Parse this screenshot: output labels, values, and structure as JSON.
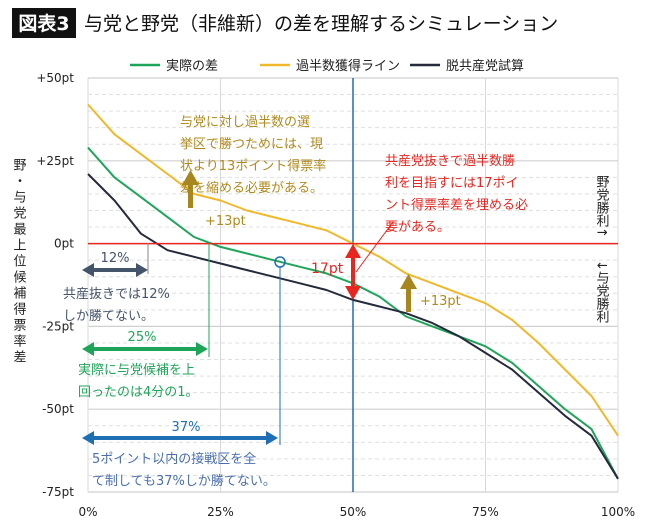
{
  "title_badge": "図表3",
  "title": "与党と野党（非維新）の差を理解するシミュレーション",
  "chart_data": {
    "type": "line",
    "xlabel": "",
    "ylabel": "野・与党最上位候補得票率差",
    "xlim": [
      0,
      100
    ],
    "ylim": [
      -75,
      50
    ],
    "x_ticks": [
      "0%",
      "25%",
      "50%",
      "75%",
      "100%"
    ],
    "y_ticks": [
      "+50pt",
      "+25pt",
      "0pt",
      "-25pt",
      "-50pt",
      "-75pt"
    ],
    "grid": true,
    "legend_position": "top",
    "x": [
      0,
      5,
      10,
      15,
      20,
      25,
      30,
      35,
      40,
      45,
      50,
      55,
      60,
      65,
      70,
      75,
      80,
      85,
      90,
      95,
      100
    ],
    "series": [
      {
        "name": "実際の差",
        "color": "#1fa55a",
        "values": [
          29,
          20,
          14,
          8,
          2,
          -1,
          -3,
          -5,
          -7,
          -9,
          -12,
          -16,
          -22,
          -25,
          -28,
          -31,
          -36,
          -43,
          -50,
          -56,
          -71
        ]
      },
      {
        "name": "過半数獲得ライン",
        "color": "#f0b92a",
        "values": [
          42,
          33,
          27,
          21,
          15,
          13,
          10,
          8,
          6,
          4,
          0,
          -4,
          -9,
          -12,
          -15,
          -18,
          -23,
          -30,
          -38,
          -46,
          -58
        ]
      },
      {
        "name": "脱共産党試算",
        "color": "#252a3c",
        "values": [
          21,
          13,
          3,
          -2,
          -4,
          -6,
          -8,
          -10,
          -12,
          -14,
          -17,
          -19,
          -21,
          -24,
          -28,
          -33,
          -38,
          -45,
          -52,
          -58,
          -71
        ]
      }
    ],
    "right_labels": {
      "up": "野党勝利↑",
      "down": "↓与党勝利"
    },
    "annotations": {
      "gold_text": [
        "与党に対し過半数の選",
        "挙区で勝つためには、現",
        "状より13ポイント得票率",
        "差を縮める必要がある。"
      ],
      "gold_arrow_label_1": "+13pt",
      "gold_arrow_label_2": "+13pt",
      "red_text": [
        "共産党抜きで過半数勝",
        "利を目指すには17ポイ",
        "ント得票率差を埋める必",
        "要がある。"
      ],
      "red_arrow_label": "17pt",
      "dark_pct": "12%",
      "dark_text": [
        "共産抜きでは12%",
        "しか勝てない。"
      ],
      "green_pct": "25%",
      "green_text": [
        "実際に与党候補を上",
        "回ったのは4分の1。"
      ],
      "blue_pct": "37%",
      "blue_text": [
        "5ポイント以内の接戦区を全",
        "て制しても37%しか勝てない。"
      ]
    },
    "colors": {
      "zero_line": "#e8261f",
      "fifty_line": "#1f6fb5",
      "gold": "#b08a1e",
      "red": "#e8261f",
      "dark": "#44546a",
      "green": "#1fa55a",
      "blue": "#1f6fb5"
    }
  }
}
